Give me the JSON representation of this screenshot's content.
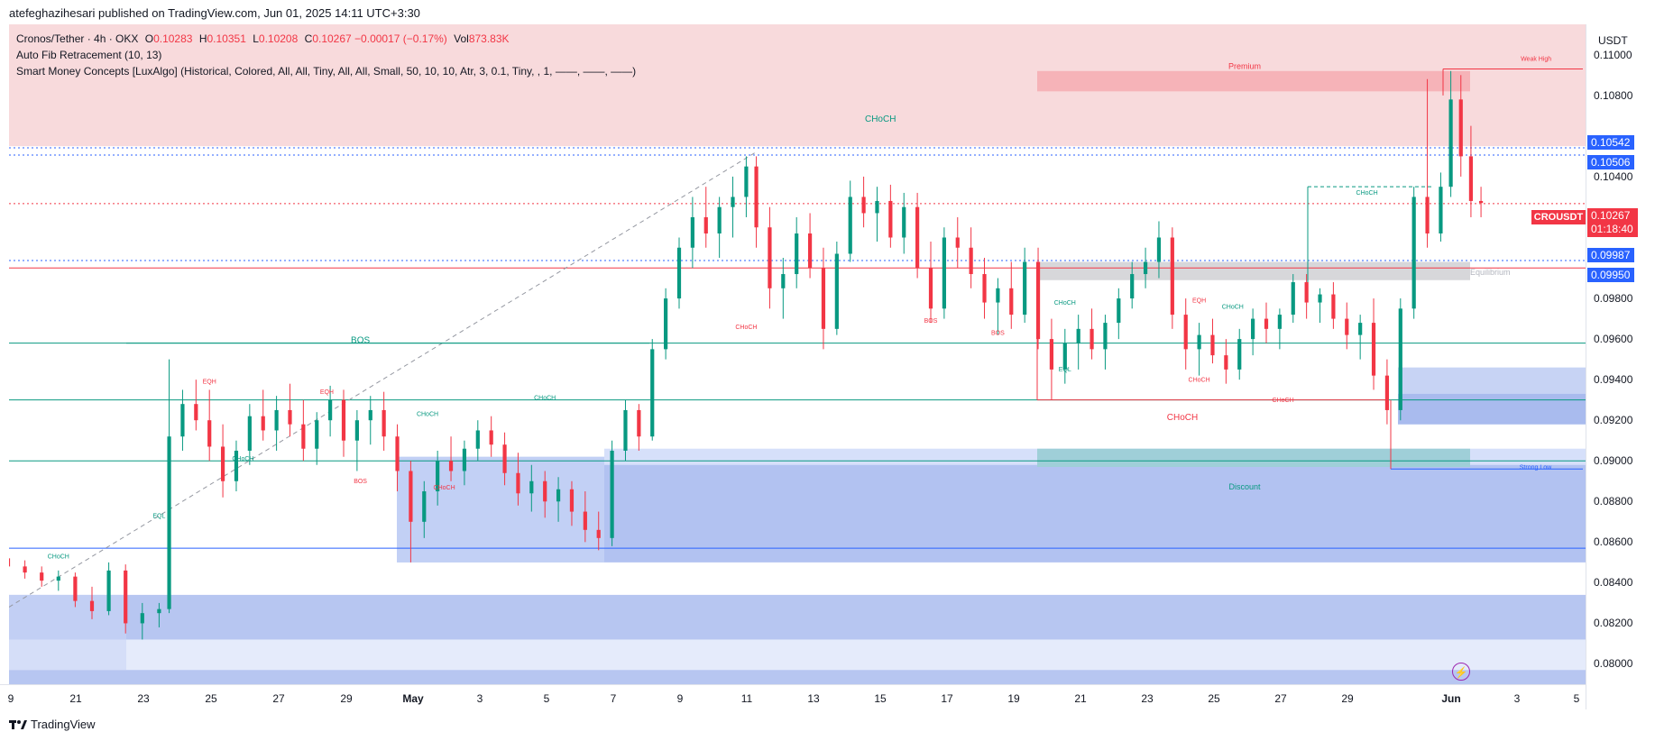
{
  "publisher_line": "atefeghazihesari published on TradingView.com, Jun 01, 2025 14:11 UTC+3:30",
  "legend": {
    "symbol_line": "Cronos/Tether · 4h · OKX",
    "open_label": "O",
    "open": "0.10283",
    "high_label": "H",
    "high": "0.10351",
    "low_label": "L",
    "low": "0.10208",
    "close_label": "C",
    "close": "0.10267",
    "change": "−0.00017 (−0.17%)",
    "vol_label": "Vol",
    "vol": "873.83K",
    "indicator_1": "Auto Fib Retracement (10, 13)",
    "indicator_2": "Smart Money Concepts [LuxAlgo] (Historical, Colored, All, All, Tiny, All, All, Small, 50, 10, 10, Atr, 3, 0.1, Tiny, , 1, ——, ——, ——)"
  },
  "price_axis": {
    "currency": "USDT",
    "ticks": [
      "0.11000",
      "0.10800",
      "0.10400",
      "0.09800",
      "0.09600",
      "0.09400",
      "0.09200",
      "0.09000",
      "0.08800",
      "0.08600",
      "0.08400",
      "0.08200",
      "0.08000"
    ],
    "badges_blue": [
      "0.10542",
      "0.10506",
      "0.09987",
      "0.09950"
    ],
    "symbol_badge": "CROUSDT",
    "last_price": "0.10267",
    "countdown": "01:18:40"
  },
  "time_axis": {
    "ticks": [
      "9",
      "21",
      "23",
      "25",
      "27",
      "29",
      "May",
      "3",
      "5",
      "7",
      "9",
      "11",
      "13",
      "15",
      "17",
      "19",
      "21",
      "23",
      "25",
      "27",
      "29",
      "Jun",
      "3",
      "5"
    ]
  },
  "footer": {
    "brand": "TradingView"
  },
  "colors": {
    "up": "#089981",
    "down": "#f23645",
    "premium": "#f7c9cc",
    "discount": "#9db3ea",
    "equilibrium": "#c8c8c8"
  },
  "chart_data": {
    "type": "candlestick",
    "symbol": "CROUSDT",
    "timeframe": "4h",
    "ylim": [
      0.079,
      0.1115
    ],
    "x_range": [
      "2025-04-19",
      "2025-06-05"
    ],
    "last_close": 0.10267,
    "zones": {
      "premium": {
        "label": "Premium",
        "top": 0.1093,
        "bottom": 0.1055
      },
      "equilibrium": {
        "label": "Equilibrium",
        "top": 0.0998,
        "bottom": 0.0989
      },
      "discount": {
        "label": "Discount",
        "top": 0.0902,
        "bottom": 0.0897
      }
    },
    "horizontal_levels": [
      {
        "value": 0.10542,
        "style": "dotted",
        "color": "#2962ff"
      },
      {
        "value": 0.10506,
        "style": "dotted",
        "color": "#2962ff"
      },
      {
        "value": 0.09987,
        "style": "dotted",
        "color": "#2962ff"
      },
      {
        "value": 0.0995,
        "style": "solid",
        "color": "#f23645"
      },
      {
        "value": 0.10267,
        "style": "dotted",
        "color": "#f23645"
      },
      {
        "value": 0.0958,
        "style": "solid",
        "color": "#089981"
      },
      {
        "value": 0.093,
        "style": "solid",
        "color": "#089981"
      },
      {
        "value": 0.09,
        "style": "solid",
        "color": "#089981"
      },
      {
        "value": 0.0857,
        "style": "solid",
        "color": "#2962ff"
      }
    ],
    "structure_labels": [
      {
        "text": "CHoCH",
        "date": "2025-05-15",
        "price": 0.1067,
        "color": "#089981"
      },
      {
        "text": "BOS",
        "date": "2025-04-29.5",
        "price": 0.0958,
        "color": "#089981"
      },
      {
        "text": "CHoCH",
        "date": "2025-05-24",
        "price": 0.092,
        "color": "#f23645"
      },
      {
        "text": "CHoCH",
        "date": "2025-05-11",
        "price": 0.0965,
        "color": "#f23645"
      },
      {
        "text": "BOS",
        "date": "2025-05-16.5",
        "price": 0.0968,
        "color": "#f23645"
      },
      {
        "text": "BOS",
        "date": "2025-05-18.5",
        "price": 0.0962,
        "color": "#f23645"
      },
      {
        "text": "CHoCH",
        "date": "2025-05-05",
        "price": 0.093,
        "color": "#089981"
      },
      {
        "text": "CHoCH",
        "date": "2025-05-01.5",
        "price": 0.0922,
        "color": "#089981"
      },
      {
        "text": "CHoCH",
        "date": "2025-05-20.5",
        "price": 0.0977,
        "color": "#089981"
      },
      {
        "text": "CHoCH",
        "date": "2025-05-25.5",
        "price": 0.0975,
        "color": "#089981"
      },
      {
        "text": "CHoCH",
        "date": "2025-05-29.5",
        "price": 0.1031,
        "color": "#089981"
      },
      {
        "text": "CHoCH",
        "date": "2025-04-20.5",
        "price": 0.0852,
        "color": "#089981"
      },
      {
        "text": "CHoCH",
        "date": "2025-04-26",
        "price": 0.09,
        "color": "#089981"
      },
      {
        "text": "CHoCH",
        "date": "2025-05-02",
        "price": 0.0886,
        "color": "#f23645"
      },
      {
        "text": "CHoCH",
        "date": "2025-05-24.5",
        "price": 0.0939,
        "color": "#f23645"
      },
      {
        "text": "CHoCH",
        "date": "2025-05-27",
        "price": 0.0929,
        "color": "#f23645"
      },
      {
        "text": "BOS",
        "date": "2025-04-29.5",
        "price": 0.0889,
        "color": "#f23645"
      },
      {
        "text": "EQH",
        "date": "2025-04-25",
        "price": 0.0938,
        "color": "#f23645"
      },
      {
        "text": "EQH",
        "date": "2025-04-28.5",
        "price": 0.0933,
        "color": "#f23645"
      },
      {
        "text": "EQH",
        "date": "2025-05-24.5",
        "price": 0.0978,
        "color": "#f23645"
      },
      {
        "text": "EQL",
        "date": "2025-04-23.5",
        "price": 0.0872,
        "color": "#089981"
      },
      {
        "text": "EQL",
        "date": "2025-05-20.5",
        "price": 0.0944,
        "color": "#089981"
      },
      {
        "text": "Weak High",
        "date": "2025-06-04",
        "price": 0.1097,
        "color": "#f23645"
      },
      {
        "text": "Strong Low",
        "date": "2025-06-04",
        "price": 0.0896,
        "color": "#2962ff"
      }
    ],
    "candles": [
      [
        "2025-04-19.0",
        0.0852,
        0.0855,
        0.0846,
        0.0848
      ],
      [
        "2025-04-19.5",
        0.0848,
        0.0851,
        0.0842,
        0.0845
      ],
      [
        "2025-04-20.0",
        0.0845,
        0.0848,
        0.0838,
        0.0841
      ],
      [
        "2025-04-20.5",
        0.0841,
        0.0846,
        0.0836,
        0.0843
      ],
      [
        "2025-04-21.0",
        0.0843,
        0.0845,
        0.0828,
        0.0831
      ],
      [
        "2025-04-21.5",
        0.0831,
        0.0838,
        0.0822,
        0.0826
      ],
      [
        "2025-04-22.0",
        0.0826,
        0.085,
        0.0824,
        0.0846
      ],
      [
        "2025-04-22.5",
        0.0846,
        0.0849,
        0.0815,
        0.082
      ],
      [
        "2025-04-23.0",
        0.082,
        0.083,
        0.0812,
        0.0825
      ],
      [
        "2025-04-23.5",
        0.0825,
        0.083,
        0.0818,
        0.0827
      ],
      [
        "2025-04-23.8",
        0.0827,
        0.095,
        0.0825,
        0.0912
      ],
      [
        "2025-04-24.2",
        0.0912,
        0.0935,
        0.0905,
        0.0928
      ],
      [
        "2025-04-24.6",
        0.0928,
        0.094,
        0.0915,
        0.092
      ],
      [
        "2025-04-25.0",
        0.092,
        0.0935,
        0.09,
        0.0907
      ],
      [
        "2025-04-25.4",
        0.0907,
        0.0918,
        0.0882,
        0.089
      ],
      [
        "2025-04-25.8",
        0.089,
        0.091,
        0.0885,
        0.0905
      ],
      [
        "2025-04-26.2",
        0.0905,
        0.0928,
        0.0898,
        0.0922
      ],
      [
        "2025-04-26.6",
        0.0922,
        0.0935,
        0.091,
        0.0915
      ],
      [
        "2025-04-27.0",
        0.0915,
        0.0932,
        0.0905,
        0.0925
      ],
      [
        "2025-04-27.4",
        0.0925,
        0.0938,
        0.0912,
        0.0918
      ],
      [
        "2025-04-27.8",
        0.0918,
        0.093,
        0.09,
        0.0906
      ],
      [
        "2025-04-28.2",
        0.0906,
        0.0924,
        0.0898,
        0.092
      ],
      [
        "2025-04-28.6",
        0.092,
        0.0937,
        0.0912,
        0.093
      ],
      [
        "2025-04-29.0",
        0.093,
        0.0935,
        0.0902,
        0.091
      ],
      [
        "2025-04-29.4",
        0.091,
        0.0925,
        0.0895,
        0.092
      ],
      [
        "2025-04-29.8",
        0.092,
        0.0932,
        0.0908,
        0.0925
      ],
      [
        "2025-04-30.2",
        0.0925,
        0.0934,
        0.0905,
        0.0912
      ],
      [
        "2025-04-30.6",
        0.0912,
        0.0918,
        0.0885,
        0.0895
      ],
      [
        "2025-05-01.0",
        0.0895,
        0.09,
        0.085,
        0.087
      ],
      [
        "2025-05-01.4",
        0.087,
        0.089,
        0.0862,
        0.0885
      ],
      [
        "2025-05-01.8",
        0.0885,
        0.0905,
        0.0878,
        0.09
      ],
      [
        "2025-05-02.2",
        0.09,
        0.0912,
        0.089,
        0.0895
      ],
      [
        "2025-05-02.6",
        0.0895,
        0.091,
        0.0888,
        0.0906
      ],
      [
        "2025-05-03.0",
        0.0906,
        0.092,
        0.09,
        0.0915
      ],
      [
        "2025-05-03.4",
        0.0915,
        0.0922,
        0.0902,
        0.0908
      ],
      [
        "2025-05-03.8",
        0.0908,
        0.0914,
        0.0888,
        0.0894
      ],
      [
        "2025-05-04.2",
        0.0894,
        0.0904,
        0.0878,
        0.0884
      ],
      [
        "2025-05-04.6",
        0.0884,
        0.0898,
        0.0875,
        0.089
      ],
      [
        "2025-05-05.0",
        0.089,
        0.0895,
        0.0872,
        0.088
      ],
      [
        "2025-05-05.4",
        0.088,
        0.0892,
        0.087,
        0.0886
      ],
      [
        "2025-05-05.8",
        0.0886,
        0.089,
        0.0868,
        0.0875
      ],
      [
        "2025-05-06.2",
        0.0875,
        0.0885,
        0.086,
        0.0866
      ],
      [
        "2025-05-06.6",
        0.0866,
        0.0875,
        0.0856,
        0.0862
      ],
      [
        "2025-05-07.0",
        0.0862,
        0.091,
        0.0858,
        0.0905
      ],
      [
        "2025-05-07.4",
        0.0905,
        0.093,
        0.09,
        0.0925
      ],
      [
        "2025-05-07.8",
        0.0925,
        0.0928,
        0.0905,
        0.0912
      ],
      [
        "2025-05-08.2",
        0.0912,
        0.096,
        0.091,
        0.0955
      ],
      [
        "2025-05-08.6",
        0.0955,
        0.0985,
        0.095,
        0.098
      ],
      [
        "2025-05-09.0",
        0.098,
        0.101,
        0.0975,
        0.1005
      ],
      [
        "2025-05-09.4",
        0.1005,
        0.103,
        0.0995,
        0.102
      ],
      [
        "2025-05-09.8",
        0.102,
        0.1035,
        0.1005,
        0.1012
      ],
      [
        "2025-05-10.2",
        0.1012,
        0.103,
        0.1,
        0.1025
      ],
      [
        "2025-05-10.6",
        0.1025,
        0.104,
        0.101,
        0.103
      ],
      [
        "2025-05-11.0",
        0.103,
        0.105,
        0.102,
        0.1045
      ],
      [
        "2025-05-11.3",
        0.1045,
        0.105,
        0.1005,
        0.1015
      ],
      [
        "2025-05-11.7",
        0.1015,
        0.1025,
        0.0975,
        0.0985
      ],
      [
        "2025-05-12.1",
        0.0985,
        0.1,
        0.097,
        0.0992
      ],
      [
        "2025-05-12.5",
        0.0992,
        0.102,
        0.0985,
        0.1012
      ],
      [
        "2025-05-12.9",
        0.1012,
        0.1022,
        0.099,
        0.0995
      ],
      [
        "2025-05-13.3",
        0.0995,
        0.1005,
        0.0955,
        0.0965
      ],
      [
        "2025-05-13.7",
        0.0965,
        0.1008,
        0.0962,
        0.1002
      ],
      [
        "2025-05-14.1",
        0.1002,
        0.1038,
        0.0998,
        0.103
      ],
      [
        "2025-05-14.5",
        0.103,
        0.104,
        0.1015,
        0.1022
      ],
      [
        "2025-05-14.9",
        0.1022,
        0.1035,
        0.1008,
        0.1028
      ],
      [
        "2025-05-15.3",
        0.1028,
        0.1036,
        0.1005,
        0.101
      ],
      [
        "2025-05-15.7",
        0.101,
        0.1032,
        0.1002,
        0.1025
      ],
      [
        "2025-05-16.1",
        0.1025,
        0.1032,
        0.099,
        0.0995
      ],
      [
        "2025-05-16.5",
        0.0995,
        0.1008,
        0.0968,
        0.0975
      ],
      [
        "2025-05-16.9",
        0.0975,
        0.1015,
        0.097,
        0.101
      ],
      [
        "2025-05-17.3",
        0.101,
        0.102,
        0.0995,
        0.1005
      ],
      [
        "2025-05-17.7",
        0.1005,
        0.1015,
        0.0985,
        0.0992
      ],
      [
        "2025-05-18.1",
        0.0992,
        0.1,
        0.097,
        0.0978
      ],
      [
        "2025-05-18.5",
        0.0978,
        0.099,
        0.0962,
        0.0985
      ],
      [
        "2025-05-18.9",
        0.0985,
        0.0998,
        0.0965,
        0.0972
      ],
      [
        "2025-05-19.3",
        0.0972,
        0.1005,
        0.0968,
        0.0998
      ],
      [
        "2025-05-19.7",
        0.0998,
        0.1005,
        0.0955,
        0.096
      ],
      [
        "2025-05-20.1",
        0.096,
        0.097,
        0.093,
        0.0945
      ],
      [
        "2025-05-20.5",
        0.0945,
        0.0965,
        0.0938,
        0.0958
      ],
      [
        "2025-05-20.9",
        0.0958,
        0.0972,
        0.0945,
        0.0965
      ],
      [
        "2025-05-21.3",
        0.0965,
        0.0975,
        0.095,
        0.0955
      ],
      [
        "2025-05-21.7",
        0.0955,
        0.0972,
        0.0945,
        0.0968
      ],
      [
        "2025-05-22.1",
        0.0968,
        0.0985,
        0.096,
        0.098
      ],
      [
        "2025-05-22.5",
        0.098,
        0.0998,
        0.0975,
        0.0992
      ],
      [
        "2025-05-22.9",
        0.0992,
        0.1005,
        0.0985,
        0.0998
      ],
      [
        "2025-05-23.3",
        0.0998,
        0.1018,
        0.099,
        0.101
      ],
      [
        "2025-05-23.7",
        0.101,
        0.1015,
        0.0965,
        0.0972
      ],
      [
        "2025-05-24.1",
        0.0972,
        0.098,
        0.0945,
        0.0955
      ],
      [
        "2025-05-24.5",
        0.0955,
        0.0968,
        0.0942,
        0.0962
      ],
      [
        "2025-05-24.9",
        0.0962,
        0.097,
        0.0948,
        0.0952
      ],
      [
        "2025-05-25.3",
        0.0952,
        0.096,
        0.0938,
        0.0945
      ],
      [
        "2025-05-25.7",
        0.0945,
        0.0965,
        0.094,
        0.096
      ],
      [
        "2025-05-26.1",
        0.096,
        0.0975,
        0.0952,
        0.097
      ],
      [
        "2025-05-26.5",
        0.097,
        0.0978,
        0.0958,
        0.0965
      ],
      [
        "2025-05-26.9",
        0.0965,
        0.0975,
        0.0955,
        0.0972
      ],
      [
        "2025-05-27.3",
        0.0972,
        0.0992,
        0.0968,
        0.0988
      ],
      [
        "2025-05-27.7",
        0.0988,
        0.0992,
        0.097,
        0.0978
      ],
      [
        "2025-05-28.1",
        0.0978,
        0.0985,
        0.0968,
        0.0982
      ],
      [
        "2025-05-28.5",
        0.0982,
        0.0988,
        0.0965,
        0.097
      ],
      [
        "2025-05-28.9",
        0.097,
        0.0978,
        0.0955,
        0.0962
      ],
      [
        "2025-05-29.3",
        0.0962,
        0.0972,
        0.095,
        0.0968
      ],
      [
        "2025-05-29.7",
        0.0968,
        0.098,
        0.0935,
        0.0942
      ],
      [
        "2025-05-30.1",
        0.0942,
        0.095,
        0.0918,
        0.0925
      ],
      [
        "2025-05-30.5",
        0.0925,
        0.098,
        0.092,
        0.0975
      ],
      [
        "2025-05-30.9",
        0.0975,
        0.1035,
        0.097,
        0.103
      ],
      [
        "2025-05-31.3",
        0.103,
        0.1088,
        0.1005,
        0.1012
      ],
      [
        "2025-05-31.7",
        0.1012,
        0.1042,
        0.1008,
        0.1035
      ],
      [
        "2025-06-01.0",
        0.1035,
        0.1092,
        0.103,
        0.1078
      ],
      [
        "2025-06-01.3",
        0.1078,
        0.109,
        0.104,
        0.105
      ],
      [
        "2025-06-01.6",
        0.105,
        0.1065,
        0.102,
        0.1028
      ],
      [
        "2025-06-01.9",
        0.1028,
        0.1035,
        0.102,
        0.1027
      ]
    ]
  }
}
